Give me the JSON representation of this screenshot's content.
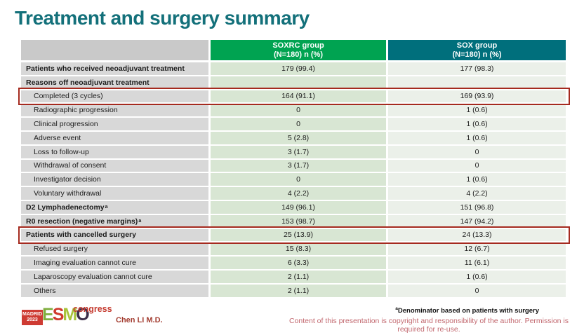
{
  "slide": {
    "title": "Treatment and surgery summary"
  },
  "table": {
    "col_headers": [
      {
        "line1": "SOXRC group",
        "line2": "(N=180)  n (%)"
      },
      {
        "line1": "SOX group",
        "line2": "(N=180)  n (%)"
      }
    ],
    "rows": [
      {
        "label": "Patients who received neoadjuvant treatment",
        "bold": true,
        "indent": false,
        "soxrc": "179 (99.4)",
        "sox": "177 (98.3)",
        "highlight": false
      },
      {
        "label": "Reasons off neoadjuvant treatment",
        "bold": true,
        "indent": false,
        "soxrc": "",
        "sox": "",
        "highlight": false
      },
      {
        "label": "Completed (3 cycles)",
        "bold": false,
        "indent": true,
        "soxrc": "164 (91.1)",
        "sox": "169 (93.9)",
        "highlight": true
      },
      {
        "label": "Radiographic progression",
        "bold": false,
        "indent": true,
        "soxrc": "0",
        "sox": "1 (0.6)",
        "highlight": false
      },
      {
        "label": "Clinical progression",
        "bold": false,
        "indent": true,
        "soxrc": "0",
        "sox": "1 (0.6)",
        "highlight": false
      },
      {
        "label": "Adverse event",
        "bold": false,
        "indent": true,
        "soxrc": "5 (2.8)",
        "sox": "1 (0.6)",
        "highlight": false
      },
      {
        "label": "Loss to follow-up",
        "bold": false,
        "indent": true,
        "soxrc": "3 (1.7)",
        "sox": "0",
        "highlight": false
      },
      {
        "label": "Withdrawal of consent",
        "bold": false,
        "indent": true,
        "soxrc": "3 (1.7)",
        "sox": "0",
        "highlight": false
      },
      {
        "label": "Investigator decision",
        "bold": false,
        "indent": true,
        "soxrc": "0",
        "sox": "1 (0.6)",
        "highlight": false
      },
      {
        "label": "Voluntary withdrawal",
        "bold": false,
        "indent": true,
        "soxrc": "4 (2.2)",
        "sox": "4 (2.2)",
        "highlight": false
      },
      {
        "label": "D2 Lymphadenectomy",
        "sup": "a",
        "bold": true,
        "indent": false,
        "soxrc": "149 (96.1)",
        "sox": "151 (96.8)",
        "highlight": false
      },
      {
        "label": "R0 resection (negative margins)",
        "sup": "a",
        "bold": true,
        "indent": false,
        "soxrc": "153 (98.7)",
        "sox": "147 (94.2)",
        "highlight": false
      },
      {
        "label": "Patients with cancelled surgery",
        "bold": true,
        "indent": false,
        "soxrc": "25 (13.9)",
        "sox": "24 (13.3)",
        "highlight": true
      },
      {
        "label": "Refused surgery",
        "bold": false,
        "indent": true,
        "soxrc": "15 (8.3)",
        "sox": "12 (6.7)",
        "highlight": false
      },
      {
        "label": "Imaging evaluation cannot cure",
        "bold": false,
        "indent": true,
        "soxrc": "6 (3.3)",
        "sox": "11 (6.1)",
        "highlight": false
      },
      {
        "label": "Laparoscopy evaluation cannot cure",
        "bold": false,
        "indent": true,
        "soxrc": "2 (1.1)",
        "sox": "1 (0.6)",
        "highlight": false
      },
      {
        "label": "Others",
        "bold": false,
        "indent": true,
        "soxrc": "2 (1.1)",
        "sox": "0",
        "highlight": false
      }
    ]
  },
  "chart_data": {
    "type": "table",
    "title": "Treatment and surgery summary",
    "columns": [
      "",
      "SOXRC group (N=180) n (%)",
      "SOX group (N=180) n (%)"
    ],
    "rows": [
      [
        "Patients who received neoadjuvant treatment",
        "179 (99.4)",
        "177 (98.3)"
      ],
      [
        "Reasons off neoadjuvant treatment",
        "",
        ""
      ],
      [
        "Completed (3 cycles)",
        "164 (91.1)",
        "169 (93.9)"
      ],
      [
        "Radiographic progression",
        "0",
        "1 (0.6)"
      ],
      [
        "Clinical progression",
        "0",
        "1 (0.6)"
      ],
      [
        "Adverse event",
        "5 (2.8)",
        "1 (0.6)"
      ],
      [
        "Loss to follow-up",
        "3 (1.7)",
        "0"
      ],
      [
        "Withdrawal of consent",
        "3 (1.7)",
        "0"
      ],
      [
        "Investigator decision",
        "0",
        "1 (0.6)"
      ],
      [
        "Voluntary withdrawal",
        "4 (2.2)",
        "4 (2.2)"
      ],
      [
        "D2 Lymphadenectomy(a)",
        "149 (96.1)",
        "151 (96.8)"
      ],
      [
        "R0 resection (negative margins)(a)",
        "153 (98.7)",
        "147 (94.2)"
      ],
      [
        "Patients with cancelled surgery",
        "25 (13.9)",
        "24 (13.3)"
      ],
      [
        "Refused surgery",
        "15 (8.3)",
        "12 (6.7)"
      ],
      [
        "Imaging evaluation cannot cure",
        "6 (3.3)",
        "11 (6.1)"
      ],
      [
        "Laparoscopy evaluation cannot cure",
        "2 (1.1)",
        "1 (0.6)"
      ],
      [
        "Others",
        "2 (1.1)",
        "0"
      ]
    ],
    "highlighted_rows": [
      "Completed (3 cycles)",
      "Patients with cancelled surgery"
    ]
  },
  "footer": {
    "author": "Chen LI M.D.",
    "footnote_sup": "a",
    "footnote": "Denominator based on patients with surgery",
    "copyright": "Content of this presentation is copyright and responsibility of the author. Permission is required for re-use.",
    "logo": {
      "badge_line1": "MADRID",
      "badge_line2": "2023",
      "letters": [
        "E",
        "S",
        "M",
        "O"
      ],
      "congress": "congress"
    }
  },
  "colors": {
    "title": "#13707a",
    "header_green": "#00a351",
    "header_teal": "#006f7c",
    "header_gray": "#c9c9c9",
    "label_cell": "#d8d8d8",
    "soxrc_cell": "#d8e6d3",
    "sox_cell": "#ebf0e9",
    "highlight_red": "#a52a1f",
    "author_red": "#a33d31",
    "copyright_rose": "#c2686f",
    "logo_badge_red": "#ce3b33",
    "congress_red": "#c53a2f",
    "esmo_letter_colors": [
      "#7fae3e",
      "#cf3a2d",
      "#a8c43a",
      "#3c2e49"
    ]
  }
}
